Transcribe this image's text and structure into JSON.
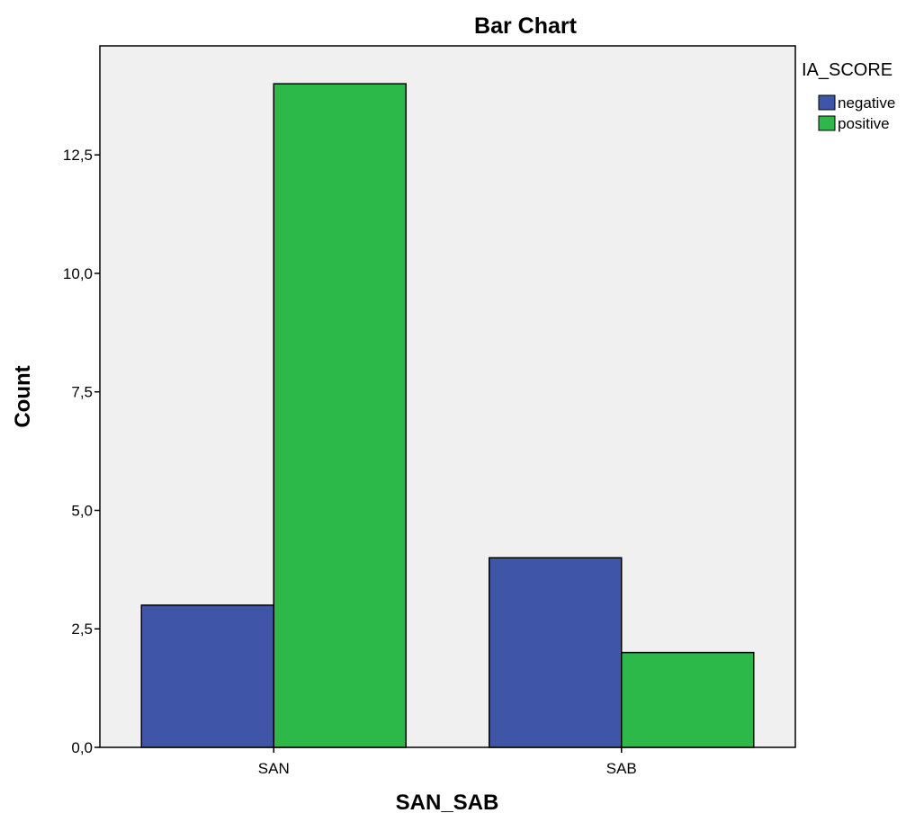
{
  "chart_data": {
    "type": "bar",
    "title": "Bar Chart",
    "xlabel": "SAN_SAB",
    "ylabel": "Count",
    "categories": [
      "SAN",
      "SAB"
    ],
    "series": [
      {
        "name": "negative",
        "values": [
          3,
          4
        ],
        "color": "#3F56A8"
      },
      {
        "name": "positive",
        "values": [
          14,
          2
        ],
        "color": "#2DB84A"
      }
    ],
    "ylim": [
      0,
      14.8
    ],
    "yticks": [
      0,
      2.5,
      5,
      7.5,
      10,
      12.5
    ],
    "ytick_labels": [
      "0,0",
      "2,5",
      "5,0",
      "7,5",
      "10,0",
      "12,5"
    ],
    "legend": {
      "title": "IA_SCORE",
      "position": "top-right outside"
    },
    "grid": false,
    "plot_background": "#F0F0F0"
  }
}
